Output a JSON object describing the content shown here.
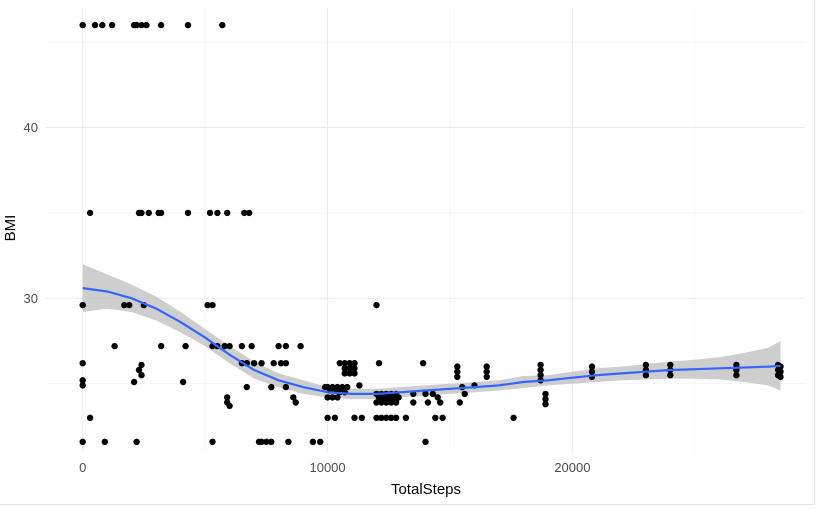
{
  "chart_data": {
    "type": "scatter",
    "xlabel": "TotalSteps",
    "ylabel": "BMI",
    "xlim": [
      -1500,
      29500
    ],
    "ylim": [
      21,
      47
    ],
    "x_ticks": [
      0,
      10000,
      20000
    ],
    "x_tick_labels": [
      "0",
      "10000",
      "20000"
    ],
    "y_ticks": [
      30,
      40
    ],
    "y_tick_labels": [
      "30",
      "40"
    ],
    "grid": true,
    "colors": {
      "points": "#000000",
      "smooth_line": "#3366ff",
      "ribbon": "#bdbdbd",
      "grid": "#ebebeb"
    },
    "points": [
      [
        0,
        46.0
      ],
      [
        500,
        46.0
      ],
      [
        800,
        46.0
      ],
      [
        1200,
        46.0
      ],
      [
        2100,
        46.0
      ],
      [
        2200,
        46.0
      ],
      [
        2400,
        46.0
      ],
      [
        2600,
        46.0
      ],
      [
        3200,
        46.0
      ],
      [
        4300,
        46.0
      ],
      [
        5700,
        46.0
      ],
      [
        300,
        35.0
      ],
      [
        2300,
        35.0
      ],
      [
        2400,
        35.0
      ],
      [
        2700,
        35.0
      ],
      [
        3100,
        35.0
      ],
      [
        3200,
        35.0
      ],
      [
        4300,
        35.0
      ],
      [
        5200,
        35.0
      ],
      [
        5500,
        35.0
      ],
      [
        5900,
        35.0
      ],
      [
        6600,
        35.0
      ],
      [
        6800,
        35.0
      ],
      [
        0,
        29.6
      ],
      [
        1700,
        29.6
      ],
      [
        1900,
        29.6
      ],
      [
        2500,
        29.6
      ],
      [
        5100,
        29.6
      ],
      [
        5300,
        29.6
      ],
      [
        12000,
        29.6
      ],
      [
        1300,
        27.2
      ],
      [
        3200,
        27.2
      ],
      [
        4200,
        27.2
      ],
      [
        5300,
        27.2
      ],
      [
        5500,
        27.2
      ],
      [
        5800,
        27.2
      ],
      [
        6000,
        27.2
      ],
      [
        6500,
        27.2
      ],
      [
        6900,
        27.2
      ],
      [
        8000,
        27.2
      ],
      [
        8300,
        27.2
      ],
      [
        8900,
        27.2
      ],
      [
        0,
        26.2
      ],
      [
        2400,
        26.1
      ],
      [
        2300,
        25.8
      ],
      [
        2400,
        25.5
      ],
      [
        6500,
        26.2
      ],
      [
        6700,
        26.2
      ],
      [
        7000,
        26.2
      ],
      [
        7300,
        26.2
      ],
      [
        7800,
        26.2
      ],
      [
        8100,
        26.2
      ],
      [
        8300,
        26.2
      ],
      [
        2100,
        25.1
      ],
      [
        4100,
        25.1
      ],
      [
        6700,
        24.8
      ],
      [
        7700,
        24.8
      ],
      [
        8300,
        24.8
      ],
      [
        0,
        25.2
      ],
      [
        0,
        24.9
      ],
      [
        5900,
        24.2
      ],
      [
        5900,
        23.9
      ],
      [
        6000,
        23.7
      ],
      [
        8600,
        24.2
      ],
      [
        8700,
        23.9
      ],
      [
        300,
        23.0
      ],
      [
        0,
        21.6
      ],
      [
        900,
        21.6
      ],
      [
        2200,
        21.6
      ],
      [
        5300,
        21.6
      ],
      [
        7200,
        21.6
      ],
      [
        7300,
        21.6
      ],
      [
        7500,
        21.6
      ],
      [
        7700,
        21.6
      ],
      [
        8400,
        21.6
      ],
      [
        9400,
        21.6
      ],
      [
        9700,
        21.6
      ],
      [
        14000,
        21.6
      ],
      [
        9900,
        24.8
      ],
      [
        10000,
        24.8
      ],
      [
        10100,
        24.6
      ],
      [
        10200,
        24.8
      ],
      [
        10300,
        24.6
      ],
      [
        10400,
        24.8
      ],
      [
        10500,
        24.5
      ],
      [
        10600,
        24.8
      ],
      [
        10700,
        24.5
      ],
      [
        10800,
        24.8
      ],
      [
        10000,
        24.2
      ],
      [
        10200,
        24.2
      ],
      [
        10400,
        24.2
      ],
      [
        10000,
        23.0
      ],
      [
        10300,
        23.0
      ],
      [
        10500,
        26.2
      ],
      [
        10700,
        26.2
      ],
      [
        10900,
        26.2
      ],
      [
        11100,
        26.2
      ],
      [
        10700,
        25.9
      ],
      [
        10900,
        25.9
      ],
      [
        11100,
        25.9
      ],
      [
        10700,
        25.6
      ],
      [
        10900,
        25.6
      ],
      [
        11100,
        25.6
      ],
      [
        11000,
        26.0
      ],
      [
        11300,
        24.9
      ],
      [
        11100,
        23.0
      ],
      [
        11400,
        23.0
      ],
      [
        12100,
        26.2
      ],
      [
        13900,
        26.2
      ],
      [
        12000,
        24.4
      ],
      [
        12100,
        24.2
      ],
      [
        12200,
        24.4
      ],
      [
        12300,
        24.2
      ],
      [
        12400,
        24.4
      ],
      [
        12500,
        24.2
      ],
      [
        12600,
        24.4
      ],
      [
        12700,
        24.2
      ],
      [
        12800,
        24.4
      ],
      [
        12000,
        23.9
      ],
      [
        12200,
        23.9
      ],
      [
        12400,
        23.9
      ],
      [
        12600,
        23.9
      ],
      [
        12800,
        23.9
      ],
      [
        12900,
        24.2
      ],
      [
        12000,
        23.0
      ],
      [
        12200,
        23.0
      ],
      [
        12400,
        23.0
      ],
      [
        12600,
        23.0
      ],
      [
        12800,
        23.0
      ],
      [
        13200,
        23.0
      ],
      [
        13500,
        24.4
      ],
      [
        13500,
        23.9
      ],
      [
        14000,
        24.4
      ],
      [
        14100,
        23.9
      ],
      [
        14300,
        24.4
      ],
      [
        14500,
        24.2
      ],
      [
        14600,
        23.9
      ],
      [
        14400,
        23.0
      ],
      [
        14700,
        23.0
      ],
      [
        15300,
        26.0
      ],
      [
        15300,
        25.7
      ],
      [
        15300,
        25.4
      ],
      [
        15500,
        24.8
      ],
      [
        15600,
        24.4
      ],
      [
        15400,
        23.9
      ],
      [
        16000,
        24.9
      ],
      [
        16500,
        26.0
      ],
      [
        16500,
        25.7
      ],
      [
        16500,
        25.4
      ],
      [
        17600,
        23.0
      ],
      [
        18700,
        26.1
      ],
      [
        18700,
        25.8
      ],
      [
        18700,
        25.5
      ],
      [
        18700,
        25.2
      ],
      [
        18900,
        24.4
      ],
      [
        18900,
        24.1
      ],
      [
        18900,
        23.8
      ],
      [
        20800,
        26.0
      ],
      [
        20800,
        25.7
      ],
      [
        20800,
        25.4
      ],
      [
        23000,
        26.1
      ],
      [
        23000,
        25.8
      ],
      [
        23000,
        25.5
      ],
      [
        24000,
        26.1
      ],
      [
        24000,
        25.8
      ],
      [
        24000,
        25.5
      ],
      [
        26700,
        26.1
      ],
      [
        26700,
        25.8
      ],
      [
        26700,
        25.5
      ],
      [
        28400,
        26.1
      ],
      [
        28400,
        25.8
      ],
      [
        28400,
        25.5
      ],
      [
        28500,
        26.0
      ],
      [
        28500,
        25.7
      ],
      [
        28500,
        25.4
      ]
    ],
    "smooth": {
      "x": [
        0,
        1000,
        2000,
        3000,
        4000,
        5000,
        6000,
        7000,
        8000,
        9000,
        10000,
        11000,
        12000,
        13000,
        14000,
        15000,
        16000,
        17000,
        18000,
        19000,
        20000,
        21000,
        22000,
        23000,
        24000,
        25000,
        26000,
        27000,
        28000,
        28500
      ],
      "y": [
        30.6,
        30.4,
        30.0,
        29.4,
        28.6,
        27.7,
        26.7,
        25.8,
        25.2,
        24.8,
        24.5,
        24.4,
        24.4,
        24.5,
        24.6,
        24.7,
        24.8,
        24.9,
        25.1,
        25.2,
        25.35,
        25.5,
        25.6,
        25.7,
        25.8,
        25.85,
        25.9,
        25.95,
        26.0,
        26.05
      ],
      "lower": [
        29.2,
        29.4,
        29.2,
        28.7,
        28.0,
        27.2,
        26.2,
        25.3,
        24.8,
        24.4,
        24.2,
        24.1,
        24.1,
        24.2,
        24.3,
        24.4,
        24.5,
        24.6,
        24.75,
        24.9,
        25.0,
        25.1,
        25.2,
        25.25,
        25.3,
        25.3,
        25.25,
        25.1,
        24.9,
        24.6
      ],
      "upper": [
        32.0,
        31.4,
        30.8,
        30.1,
        29.2,
        28.2,
        27.2,
        26.3,
        25.6,
        25.2,
        24.8,
        24.7,
        24.7,
        24.8,
        24.9,
        25.0,
        25.1,
        25.2,
        25.45,
        25.5,
        25.7,
        25.9,
        26.0,
        26.15,
        26.3,
        26.4,
        26.55,
        26.8,
        27.1,
        27.5
      ]
    }
  }
}
